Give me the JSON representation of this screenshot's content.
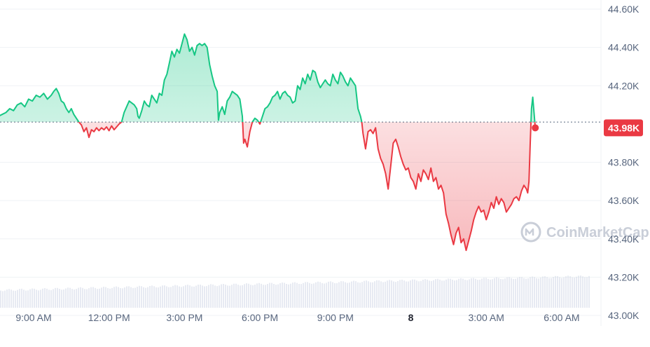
{
  "chart_data": {
    "type": "line",
    "title": "",
    "xlabel": "",
    "ylabel": "",
    "ylim": [
      43000,
      44600
    ],
    "y_ticks": [
      {
        "value": 44600,
        "label": "44.60K"
      },
      {
        "value": 44400,
        "label": "44.40K"
      },
      {
        "value": 44200,
        "label": "44.20K"
      },
      {
        "value": 43800,
        "label": "43.80K"
      },
      {
        "value": 43600,
        "label": "43.60K"
      },
      {
        "value": 43400,
        "label": "43.40K"
      },
      {
        "value": 43200,
        "label": "43.20K"
      },
      {
        "value": 43000,
        "label": "43.00K"
      }
    ],
    "x_ticks": [
      {
        "hour": 9,
        "label": "9:00 AM",
        "bold": false
      },
      {
        "hour": 12,
        "label": "12:00 PM",
        "bold": false
      },
      {
        "hour": 15,
        "label": "3:00 PM",
        "bold": false
      },
      {
        "hour": 18,
        "label": "6:00 PM",
        "bold": false
      },
      {
        "hour": 21,
        "label": "9:00 PM",
        "bold": false
      },
      {
        "hour": 24,
        "label": "8",
        "bold": true
      },
      {
        "hour": 27,
        "label": "3:00 AM",
        "bold": false
      },
      {
        "hour": 30,
        "label": "6:00 AM",
        "bold": false
      }
    ],
    "baseline": 44010,
    "current_price": {
      "value": 43980,
      "label": "43.98K"
    },
    "colors": {
      "up": "#16c784",
      "down": "#ea3943",
      "grid": "#eff2f5",
      "text": "#58667e"
    },
    "watermark": "CoinMarketCap",
    "series": [
      {
        "points": [
          [
            7.5,
            44010
          ],
          [
            7.6,
            44040
          ],
          [
            7.75,
            44050
          ],
          [
            7.9,
            44060
          ],
          [
            8.05,
            44080
          ],
          [
            8.2,
            44070
          ],
          [
            8.35,
            44100
          ],
          [
            8.5,
            44110
          ],
          [
            8.65,
            44090
          ],
          [
            8.8,
            44130
          ],
          [
            8.95,
            44120
          ],
          [
            9.1,
            44150
          ],
          [
            9.25,
            44140
          ],
          [
            9.4,
            44160
          ],
          [
            9.55,
            44130
          ],
          [
            9.7,
            44150
          ],
          [
            9.8,
            44170
          ],
          [
            9.9,
            44185
          ],
          [
            10.0,
            44160
          ],
          [
            10.1,
            44120
          ],
          [
            10.2,
            44110
          ],
          [
            10.3,
            44080
          ],
          [
            10.4,
            44060
          ],
          [
            10.5,
            44080
          ],
          [
            10.6,
            44050
          ],
          [
            10.7,
            44030
          ],
          [
            10.8,
            44010
          ],
          [
            10.9,
            43995
          ],
          [
            11.0,
            43960
          ],
          [
            11.1,
            43980
          ],
          [
            11.2,
            43930
          ],
          [
            11.3,
            43970
          ],
          [
            11.4,
            43960
          ],
          [
            11.5,
            43980
          ],
          [
            11.6,
            43965
          ],
          [
            11.7,
            43980
          ],
          [
            11.8,
            43970
          ],
          [
            11.9,
            43985
          ],
          [
            12.0,
            43965
          ],
          [
            12.1,
            43990
          ],
          [
            12.2,
            43970
          ],
          [
            12.3,
            43985
          ],
          [
            12.4,
            44000
          ],
          [
            12.5,
            44010
          ],
          [
            12.6,
            44060
          ],
          [
            12.7,
            44090
          ],
          [
            12.8,
            44120
          ],
          [
            12.9,
            44110
          ],
          [
            13.0,
            44100
          ],
          [
            13.1,
            44080
          ],
          [
            13.15,
            44040
          ],
          [
            13.2,
            44030
          ],
          [
            13.3,
            44070
          ],
          [
            13.4,
            44120
          ],
          [
            13.5,
            44100
          ],
          [
            13.6,
            44090
          ],
          [
            13.7,
            44150
          ],
          [
            13.8,
            44130
          ],
          [
            13.9,
            44110
          ],
          [
            14.0,
            44160
          ],
          [
            14.1,
            44150
          ],
          [
            14.2,
            44230
          ],
          [
            14.3,
            44260
          ],
          [
            14.4,
            44320
          ],
          [
            14.5,
            44380
          ],
          [
            14.6,
            44350
          ],
          [
            14.7,
            44390
          ],
          [
            14.8,
            44370
          ],
          [
            14.9,
            44420
          ],
          [
            15.0,
            44470
          ],
          [
            15.1,
            44440
          ],
          [
            15.2,
            44380
          ],
          [
            15.3,
            44400
          ],
          [
            15.4,
            44360
          ],
          [
            15.5,
            44410
          ],
          [
            15.6,
            44420
          ],
          [
            15.7,
            44410
          ],
          [
            15.8,
            44420
          ],
          [
            15.9,
            44400
          ],
          [
            16.0,
            44310
          ],
          [
            16.1,
            44250
          ],
          [
            16.2,
            44200
          ],
          [
            16.3,
            44170
          ],
          [
            16.35,
            44020
          ],
          [
            16.4,
            44060
          ],
          [
            16.5,
            44090
          ],
          [
            16.6,
            44050
          ],
          [
            16.7,
            44120
          ],
          [
            16.8,
            44140
          ],
          [
            16.9,
            44170
          ],
          [
            17.0,
            44160
          ],
          [
            17.1,
            44150
          ],
          [
            17.2,
            44130
          ],
          [
            17.3,
            44040
          ],
          [
            17.35,
            43900
          ],
          [
            17.4,
            43920
          ],
          [
            17.5,
            43880
          ],
          [
            17.6,
            43960
          ],
          [
            17.7,
            44010
          ],
          [
            17.8,
            44030
          ],
          [
            17.9,
            44020
          ],
          [
            18.0,
            44000
          ],
          [
            18.1,
            44040
          ],
          [
            18.2,
            44080
          ],
          [
            18.3,
            44090
          ],
          [
            18.4,
            44110
          ],
          [
            18.5,
            44140
          ],
          [
            18.6,
            44150
          ],
          [
            18.7,
            44170
          ],
          [
            18.8,
            44130
          ],
          [
            18.9,
            44160
          ],
          [
            19.0,
            44170
          ],
          [
            19.1,
            44150
          ],
          [
            19.2,
            44140
          ],
          [
            19.3,
            44110
          ],
          [
            19.4,
            44120
          ],
          [
            19.5,
            44200
          ],
          [
            19.6,
            44180
          ],
          [
            19.7,
            44240
          ],
          [
            19.8,
            44210
          ],
          [
            19.9,
            44260
          ],
          [
            20.0,
            44230
          ],
          [
            20.1,
            44280
          ],
          [
            20.2,
            44270
          ],
          [
            20.3,
            44220
          ],
          [
            20.4,
            44190
          ],
          [
            20.5,
            44210
          ],
          [
            20.6,
            44230
          ],
          [
            20.7,
            44210
          ],
          [
            20.8,
            44200
          ],
          [
            20.9,
            44260
          ],
          [
            21.0,
            44230
          ],
          [
            21.1,
            44210
          ],
          [
            21.2,
            44270
          ],
          [
            21.3,
            44250
          ],
          [
            21.4,
            44220
          ],
          [
            21.5,
            44200
          ],
          [
            21.6,
            44240
          ],
          [
            21.7,
            44220
          ],
          [
            21.8,
            44200
          ],
          [
            21.9,
            44080
          ],
          [
            22.0,
            44040
          ],
          [
            22.05,
            44010
          ],
          [
            22.1,
            43950
          ],
          [
            22.2,
            43870
          ],
          [
            22.3,
            43960
          ],
          [
            22.4,
            43970
          ],
          [
            22.5,
            43950
          ],
          [
            22.6,
            43980
          ],
          [
            22.7,
            43870
          ],
          [
            22.8,
            43820
          ],
          [
            22.9,
            43790
          ],
          [
            23.0,
            43740
          ],
          [
            23.1,
            43660
          ],
          [
            23.2,
            43780
          ],
          [
            23.3,
            43900
          ],
          [
            23.4,
            43920
          ],
          [
            23.5,
            43880
          ],
          [
            23.6,
            43830
          ],
          [
            23.7,
            43790
          ],
          [
            23.8,
            43760
          ],
          [
            23.9,
            43770
          ],
          [
            24.0,
            43720
          ],
          [
            24.1,
            43700
          ],
          [
            24.2,
            43660
          ],
          [
            24.3,
            43740
          ],
          [
            24.4,
            43700
          ],
          [
            24.5,
            43760
          ],
          [
            24.6,
            43740
          ],
          [
            24.7,
            43710
          ],
          [
            24.8,
            43770
          ],
          [
            24.9,
            43700
          ],
          [
            25.0,
            43720
          ],
          [
            25.1,
            43660
          ],
          [
            25.2,
            43680
          ],
          [
            25.3,
            43640
          ],
          [
            25.4,
            43530
          ],
          [
            25.5,
            43480
          ],
          [
            25.6,
            43420
          ],
          [
            25.7,
            43370
          ],
          [
            25.8,
            43430
          ],
          [
            25.9,
            43460
          ],
          [
            26.0,
            43380
          ],
          [
            26.1,
            43400
          ],
          [
            26.2,
            43340
          ],
          [
            26.3,
            43390
          ],
          [
            26.4,
            43440
          ],
          [
            26.5,
            43500
          ],
          [
            26.6,
            43540
          ],
          [
            26.7,
            43570
          ],
          [
            26.8,
            43540
          ],
          [
            26.9,
            43550
          ],
          [
            27.0,
            43500
          ],
          [
            27.1,
            43540
          ],
          [
            27.2,
            43590
          ],
          [
            27.3,
            43560
          ],
          [
            27.4,
            43620
          ],
          [
            27.5,
            43580
          ],
          [
            27.6,
            43610
          ],
          [
            27.7,
            43590
          ],
          [
            27.8,
            43540
          ],
          [
            27.9,
            43560
          ],
          [
            28.0,
            43580
          ],
          [
            28.1,
            43610
          ],
          [
            28.2,
            43620
          ],
          [
            28.3,
            43600
          ],
          [
            28.4,
            43650
          ],
          [
            28.5,
            43680
          ],
          [
            28.6,
            43660
          ],
          [
            28.65,
            43640
          ],
          [
            28.7,
            43700
          ],
          [
            28.75,
            43900
          ],
          [
            28.8,
            44080
          ],
          [
            28.85,
            44140
          ],
          [
            28.9,
            44060
          ],
          [
            28.95,
            43980
          ]
        ]
      }
    ]
  }
}
